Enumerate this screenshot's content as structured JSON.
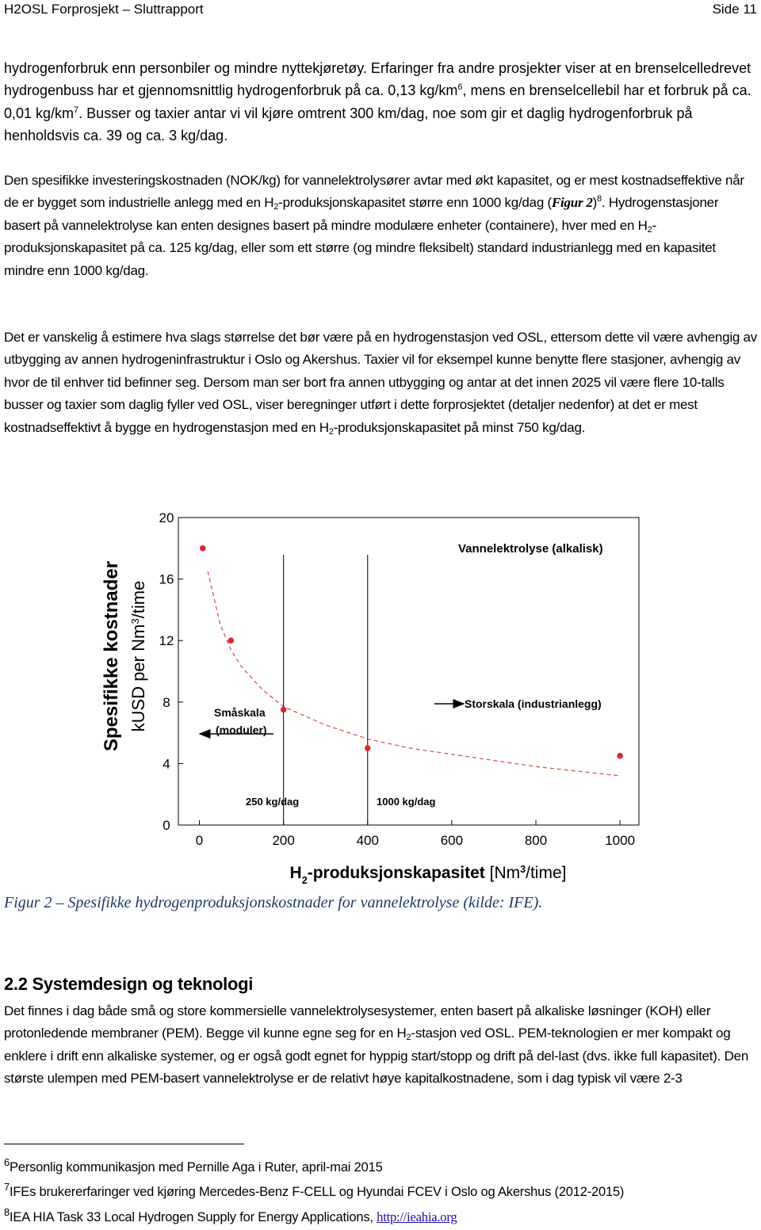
{
  "header": {
    "title": "H2OSL Forprosjekt – Sluttrapport",
    "page": "Side 11"
  },
  "paragraphs": [
    [
      {
        "text": "hydrogenforbruk enn personbiler og mindre nyttekjøretøy. Erfaringer fra andre prosjekter viser at en brenselcelledrevet hydrogenbuss har et gjennomsnittlig hydrogenforbruk på ca. 0,13 kg/km"
      },
      {
        "text": "6",
        "style": "sup"
      },
      {
        "text": ", mens en brenselcellebil har et forbruk på ca. 0,01 kg/km"
      },
      {
        "text": "7",
        "style": "sup"
      },
      {
        "text": ". Busser og taxier antar vi vil kjøre omtrent 300 km/dag, noe som gir et daglig hydrogenforbruk på henholdsvis ca. 39 og ca. 3 kg/dag."
      }
    ],
    [
      {
        "text": "Den spesifikke investeringskostnaden (NOK/kg) for vannelektrolysører avtar med økt kapasitet, og er mest kostnadseffektive når de er bygget som industrielle anlegg med en H"
      },
      {
        "text": "2",
        "style": "sub"
      },
      {
        "text": "-produksjonskapasitet større enn 1000 kg/dag ("
      },
      {
        "text": "Figur 2",
        "style": "i"
      },
      {
        "text": ")"
      },
      {
        "text": "8",
        "style": "sup"
      },
      {
        "text": ". Hydrogenstasjoner basert på vannelektrolyse kan enten designes basert på mindre modulære enheter (containere), hver med en H"
      },
      {
        "text": "2",
        "style": "sub"
      },
      {
        "text": "-produksjonskapasitet på ca. 125 kg/dag, eller som ett større (og mindre fleksibelt) standard industrianlegg med en kapasitet mindre enn 1000 kg/dag."
      }
    ],
    [
      {
        "text": "Det er vanskelig å estimere hva slags størrelse det bør være på en hydrogenstasjon ved OSL, ettersom dette vil være avhengig av utbygging av annen hydrogeninfrastruktur i Oslo og Akershus. Taxier vil for eksempel kunne benytte flere stasjoner, avhengig av hvor de til enhver tid befinner seg. Dersom man ser bort fra annen utbygging og antar at det innen 2025 vil være flere 10-talls busser og taxier som daglig fyller ved OSL, viser beregninger utført i dette forprosjektet (detaljer nedenfor) at det er mest kostnadseffektivt å bygge en hydrogenstasjon med en H"
      },
      {
        "text": "2",
        "style": "sub"
      },
      {
        "text": "-produksjonskapasitet på minst 750 kg/dag."
      }
    ],
    [
      {
        "text": "Det finnes i dag både små og store kommersielle vannelektrolysesystemer, enten basert på alkaliske løsninger (KOH) eller protonledende membraner (PEM). Begge vil kunne egne seg for en H"
      },
      {
        "text": "2",
        "style": "sub"
      },
      {
        "text": "-stasjon ved OSL. PEM-teknologien er mer kompakt og enklere i drift enn alkaliske systemer, og er også godt egnet for hyppig start/stopp og drift på del-last (dvs. ikke full kapasitet).  Den største ulempen med PEM-basert vannelektrolyse er de relativt høye kapitalkostnadene, som i dag typisk vil være 2-3"
      }
    ]
  ],
  "caption": "Figur 2 – Spesifikke hydrogenproduksjonskostnader for vannelektrolyse (kilde: IFE).",
  "heading": "2.2 Systemdesign og teknologi",
  "footnotes": [
    {
      "n": "6",
      "text": "Personlig kommunikasjon med Pernille Aga i Ruter, april-mai 2015"
    },
    {
      "n": "7",
      "text": "IFEs brukererfaringer ved kjøring Mercedes-Benz F-CELL og Hyundai FCEV i Oslo og Akershus (2012-2015)"
    },
    {
      "n": "8",
      "text": "IEA HIA Task 33 Local Hydrogen Supply for Energy Applications, ",
      "link": "http://ieahia.org"
    }
  ],
  "chart_data": {
    "type": "scatter",
    "ylabel": [
      [
        {
          "text": "Spesifikke kostnader"
        }
      ],
      [
        {
          "text": "kUSD per Nm"
        },
        {
          "text": "3",
          "style": "sup"
        },
        {
          "text": "/time"
        }
      ]
    ],
    "xlabel": [
      {
        "text": "H"
      },
      {
        "text": "2",
        "style": "sub"
      },
      {
        "text": "-produksjonskapasitet"
      },
      {
        "text": "  [Nm",
        "style": "plain"
      },
      {
        "text": "3",
        "style": "sup"
      },
      {
        "text": "/time]",
        "style": "plain"
      }
    ],
    "xlim": [
      -50,
      1045
    ],
    "ylim": [
      0,
      20
    ],
    "xticks": [
      0,
      200,
      400,
      600,
      800,
      1000
    ],
    "yticks": [
      0,
      4,
      8,
      12,
      16,
      20
    ],
    "series": [
      {
        "color": "#e0262b",
        "x": [
          8,
          75,
          200,
          400,
          1000
        ],
        "values": [
          18.0,
          12.0,
          7.5,
          5.0,
          4.5
        ]
      },
      {
        "color": "#d9534f",
        "dash": true,
        "x": [
          20,
          50,
          75,
          100,
          150,
          200,
          300,
          400,
          500,
          600,
          700,
          800,
          900,
          1000
        ],
        "values": [
          16.5,
          13.0,
          11.4,
          10.3,
          8.8,
          7.7,
          6.5,
          5.6,
          5.0,
          4.6,
          4.2,
          3.8,
          3.5,
          3.2
        ]
      }
    ],
    "vlines": [
      200,
      400
    ],
    "annotations": [
      "Vannelektrolyse (alkalisk)",
      "Småskala",
      "(moduler)",
      "Storskala (industrianlegg)",
      "250 kg/dag",
      "1000 kg/dag"
    ]
  }
}
